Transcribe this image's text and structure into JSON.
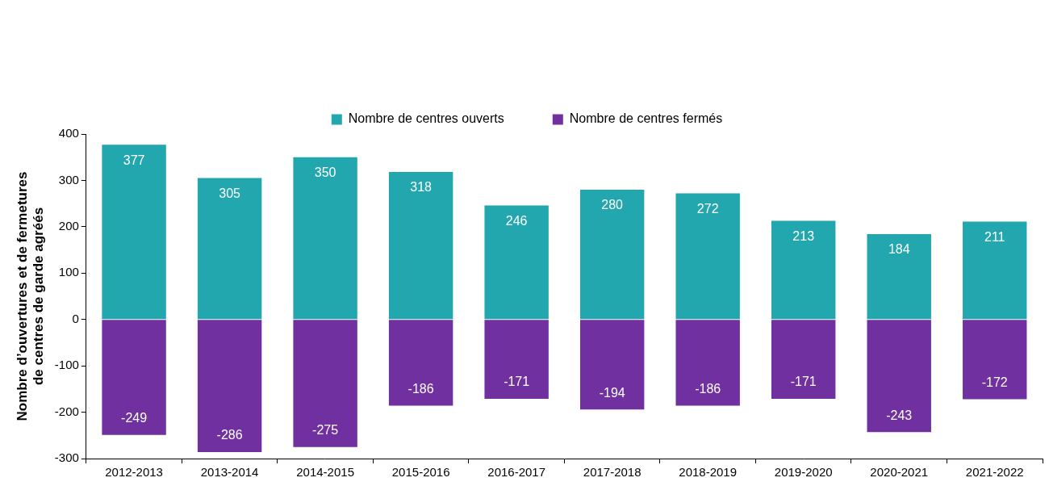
{
  "chart_data": {
    "type": "bar",
    "y_label": "Nombre d’ouvertures et de fermetures de centres de garde agréés",
    "categories": [
      "2012-2013",
      "2013-2014",
      "2014-2015",
      "2015-2016",
      "2016-2017",
      "2017-2018",
      "2018-2019",
      "2019-2020",
      "2020-2021",
      "2021-2022"
    ],
    "series": [
      {
        "name": "Nombre de centres ouverts",
        "color": "#23a7ae",
        "values": [
          377,
          305,
          350,
          318,
          246,
          280,
          272,
          213,
          184,
          211
        ]
      },
      {
        "name": "Nombre de centres fermés",
        "color": "#7030a0",
        "values": [
          -249,
          -286,
          -275,
          -186,
          -171,
          -194,
          -186,
          -171,
          -243,
          -172
        ]
      }
    ],
    "ylim": [
      -300,
      400
    ],
    "yticks": [
      -300,
      -200,
      -100,
      0,
      100,
      200,
      300,
      400
    ],
    "stacked": true,
    "grid": false,
    "legend": "top",
    "data_labels": true
  }
}
